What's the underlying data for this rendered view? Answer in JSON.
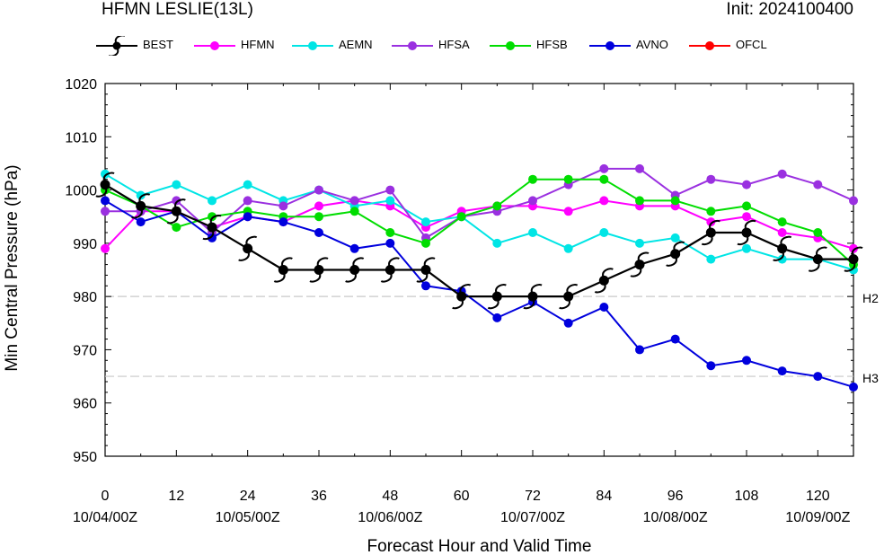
{
  "header": {
    "title_left": "HFMN LESLIE(13L)",
    "title_right": "Init: 2024100400"
  },
  "chart_data": {
    "type": "line",
    "xlabel": "Forecast Hour and Valid Time",
    "ylabel": "Min Central Pressure (hPa)",
    "xlim": [
      0,
      126
    ],
    "ylim": [
      950,
      1020
    ],
    "x_ticks": [
      0,
      12,
      24,
      36,
      48,
      60,
      72,
      84,
      96,
      108,
      120
    ],
    "x_tick_dates": [
      "10/04/00Z",
      "10/05/00Z",
      "10/06/00Z",
      "10/07/00Z",
      "10/08/00Z",
      "10/09/00Z"
    ],
    "x_tick_date_positions": [
      0,
      24,
      48,
      72,
      96,
      120
    ],
    "y_ticks": [
      950,
      960,
      970,
      980,
      990,
      1000,
      1010,
      1020
    ],
    "reference_lines": [
      {
        "label": "H2",
        "value": 980
      },
      {
        "label": "H3",
        "value": 965
      }
    ],
    "legend_placement": "top",
    "series": [
      {
        "name": "BEST",
        "color": "#000000",
        "marker": "hurricane-symbol",
        "x": [
          0,
          6,
          12,
          18,
          24,
          30,
          36,
          42,
          48,
          54,
          60,
          66,
          72,
          78,
          84,
          90,
          96,
          102,
          108,
          114,
          120,
          126
        ],
        "y": [
          1001,
          997,
          996,
          993,
          989,
          985,
          985,
          985,
          985,
          985,
          980,
          980,
          980,
          980,
          983,
          986,
          988,
          992,
          992,
          989,
          987,
          987
        ]
      },
      {
        "name": "HFMN",
        "color": "#ff00ff",
        "marker": "circle",
        "x": [
          0,
          6,
          12,
          18,
          24,
          30,
          36,
          42,
          48,
          54,
          60,
          66,
          72,
          78,
          84,
          90,
          96,
          102,
          108,
          114,
          120,
          126
        ],
        "y": [
          989,
          996,
          996,
          993,
          995,
          994,
          997,
          998,
          997,
          993,
          996,
          997,
          997,
          996,
          998,
          997,
          997,
          994,
          995,
          992,
          991,
          989
        ]
      },
      {
        "name": "AEMN",
        "color": "#00e5e5",
        "marker": "circle",
        "x": [
          0,
          6,
          12,
          18,
          24,
          30,
          36,
          42,
          48,
          54,
          60,
          66,
          72,
          78,
          84,
          90,
          96,
          102,
          108,
          114,
          120,
          126
        ],
        "y": [
          1003,
          999,
          1001,
          998,
          1001,
          998,
          1000,
          997,
          998,
          994,
          995,
          990,
          992,
          989,
          992,
          990,
          991,
          987,
          989,
          987,
          987,
          985
        ]
      },
      {
        "name": "HFSA",
        "color": "#9a30e0",
        "marker": "circle",
        "x": [
          0,
          6,
          12,
          18,
          24,
          30,
          36,
          42,
          48,
          54,
          60,
          66,
          72,
          78,
          84,
          90,
          96,
          102,
          108,
          114,
          120,
          126
        ],
        "y": [
          996,
          996,
          998,
          992,
          998,
          997,
          1000,
          998,
          1000,
          991,
          995,
          996,
          998,
          1001,
          1004,
          1004,
          999,
          1002,
          1001,
          1003,
          1001,
          998
        ]
      },
      {
        "name": "HFSB",
        "color": "#00dd00",
        "marker": "circle",
        "x": [
          0,
          6,
          12,
          18,
          24,
          30,
          36,
          42,
          48,
          54,
          60,
          66,
          72,
          78,
          84,
          90,
          96,
          102,
          108,
          114,
          120,
          126
        ],
        "y": [
          1000,
          997,
          993,
          995,
          996,
          995,
          995,
          996,
          992,
          990,
          995,
          997,
          1002,
          1002,
          1002,
          998,
          998,
          996,
          997,
          994,
          992,
          986
        ]
      },
      {
        "name": "AVNO",
        "color": "#0000dd",
        "marker": "circle",
        "x": [
          0,
          6,
          12,
          18,
          24,
          30,
          36,
          42,
          48,
          54,
          60,
          66,
          72,
          78,
          84,
          90,
          96,
          102,
          108,
          114,
          120,
          126
        ],
        "y": [
          998,
          994,
          996,
          991,
          995,
          994,
          992,
          989,
          990,
          982,
          981,
          976,
          979,
          975,
          978,
          970,
          972,
          967,
          968,
          966,
          965,
          963
        ]
      },
      {
        "name": "OFCL",
        "color": "#ff0000",
        "marker": "circle",
        "x": [],
        "y": []
      }
    ]
  }
}
